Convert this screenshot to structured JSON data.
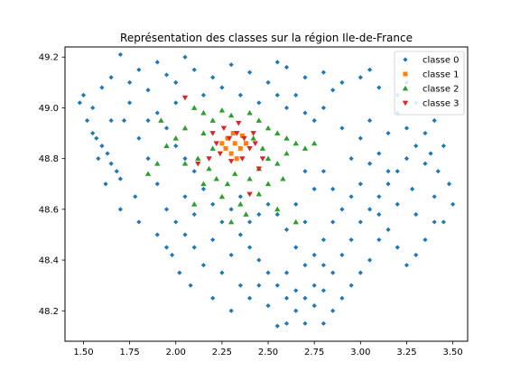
{
  "chart_data": {
    "type": "scatter",
    "title": "Représentation des classes sur la région Ile-de-France",
    "xlabel": "",
    "ylabel": "",
    "xlim": [
      1.4,
      3.58
    ],
    "ylim": [
      48.08,
      49.24
    ],
    "x_ticks": [
      1.5,
      1.75,
      2.0,
      2.25,
      2.5,
      2.75,
      3.0,
      3.25,
      3.5
    ],
    "x_tick_labels": [
      "1.50",
      "1.75",
      "2.00",
      "2.25",
      "2.50",
      "2.75",
      "3.00",
      "3.25",
      "3.50"
    ],
    "y_ticks": [
      48.2,
      48.4,
      48.6,
      48.8,
      49.0,
      49.2
    ],
    "y_tick_labels": [
      "48.2",
      "48.4",
      "48.6",
      "48.8",
      "49.0",
      "49.2"
    ],
    "grid": false,
    "legend_position": "top-right",
    "series": [
      {
        "name": "classe 0",
        "marker": "diamond",
        "color": "#1f77b4",
        "points": [
          [
            1.7,
            49.21
          ],
          [
            1.9,
            49.18
          ],
          [
            2.05,
            49.2
          ],
          [
            2.3,
            49.17
          ],
          [
            2.55,
            49.18
          ],
          [
            1.5,
            49.05
          ],
          [
            1.55,
            49.0
          ],
          [
            1.6,
            49.08
          ],
          [
            1.65,
            49.12
          ],
          [
            1.75,
            49.1
          ],
          [
            1.8,
            49.15
          ],
          [
            1.85,
            49.07
          ],
          [
            1.95,
            49.13
          ],
          [
            2.0,
            49.1
          ],
          [
            2.1,
            49.15
          ],
          [
            2.2,
            49.12
          ],
          [
            2.4,
            49.14
          ],
          [
            2.5,
            49.1
          ],
          [
            2.6,
            49.16
          ],
          [
            2.7,
            49.12
          ],
          [
            2.8,
            49.14
          ],
          [
            2.9,
            49.1
          ],
          [
            3.0,
            49.12
          ],
          [
            3.1,
            49.08
          ],
          [
            3.2,
            49.05
          ],
          [
            3.3,
            49.02
          ],
          [
            3.25,
            49.1
          ],
          [
            3.05,
            49.15
          ],
          [
            2.85,
            49.07
          ],
          [
            2.65,
            49.05
          ],
          [
            1.55,
            48.9
          ],
          [
            1.6,
            48.85
          ],
          [
            1.65,
            48.78
          ],
          [
            1.7,
            48.72
          ],
          [
            1.62,
            48.7
          ],
          [
            1.58,
            48.8
          ],
          [
            1.72,
            48.95
          ],
          [
            1.8,
            48.88
          ],
          [
            1.85,
            48.8
          ],
          [
            1.78,
            48.65
          ],
          [
            1.9,
            48.7
          ],
          [
            1.95,
            48.6
          ],
          [
            2.0,
            48.55
          ],
          [
            2.05,
            48.5
          ],
          [
            2.1,
            48.45
          ],
          [
            1.98,
            48.42
          ],
          [
            2.02,
            48.35
          ],
          [
            2.08,
            48.3
          ],
          [
            2.15,
            48.38
          ],
          [
            2.2,
            48.48
          ],
          [
            2.25,
            48.55
          ],
          [
            2.35,
            48.5
          ],
          [
            2.4,
            48.45
          ],
          [
            2.45,
            48.4
          ],
          [
            2.5,
            48.35
          ],
          [
            2.55,
            48.3
          ],
          [
            2.6,
            48.25
          ],
          [
            2.65,
            48.2
          ],
          [
            2.7,
            48.15
          ],
          [
            2.55,
            48.14
          ],
          [
            2.75,
            48.22
          ],
          [
            2.8,
            48.28
          ],
          [
            2.85,
            48.35
          ],
          [
            2.9,
            48.42
          ],
          [
            2.95,
            48.48
          ],
          [
            3.0,
            48.55
          ],
          [
            3.05,
            48.6
          ],
          [
            3.1,
            48.65
          ],
          [
            3.15,
            48.7
          ],
          [
            3.2,
            48.75
          ],
          [
            3.25,
            48.8
          ],
          [
            3.3,
            48.85
          ],
          [
            3.35,
            48.9
          ],
          [
            3.4,
            48.95
          ],
          [
            3.45,
            48.85
          ],
          [
            3.42,
            48.75
          ],
          [
            3.48,
            48.7
          ],
          [
            3.5,
            48.62
          ],
          [
            3.4,
            48.55
          ],
          [
            3.35,
            48.48
          ],
          [
            3.3,
            48.42
          ],
          [
            3.25,
            48.38
          ],
          [
            3.2,
            48.45
          ],
          [
            3.15,
            48.52
          ],
          [
            3.1,
            48.48
          ],
          [
            3.05,
            48.4
          ],
          [
            3.0,
            48.35
          ],
          [
            2.95,
            48.3
          ],
          [
            2.9,
            48.25
          ],
          [
            2.85,
            48.2
          ],
          [
            2.8,
            48.15
          ],
          [
            2.75,
            48.3
          ],
          [
            2.7,
            48.38
          ],
          [
            2.65,
            48.45
          ],
          [
            2.6,
            48.52
          ],
          [
            2.9,
            48.6
          ],
          [
            2.85,
            48.68
          ],
          [
            2.8,
            48.75
          ],
          [
            2.95,
            48.8
          ],
          [
            3.0,
            48.88
          ],
          [
            3.05,
            48.95
          ],
          [
            2.9,
            48.92
          ],
          [
            2.75,
            48.95
          ],
          [
            2.8,
            49.0
          ],
          [
            2.7,
            48.98
          ],
          [
            3.1,
            48.82
          ],
          [
            3.15,
            48.9
          ],
          [
            3.2,
            48.98
          ],
          [
            3.25,
            48.92
          ],
          [
            3.35,
            48.78
          ],
          [
            2.3,
            48.6
          ],
          [
            2.35,
            48.65
          ],
          [
            2.2,
            48.62
          ],
          [
            2.15,
            48.68
          ],
          [
            2.1,
            48.75
          ],
          [
            2.05,
            48.8
          ],
          [
            2.0,
            48.85
          ],
          [
            1.95,
            48.92
          ],
          [
            1.9,
            48.98
          ],
          [
            2.05,
            48.65
          ],
          [
            2.45,
            48.58
          ],
          [
            2.5,
            48.62
          ],
          [
            2.55,
            48.58
          ],
          [
            2.4,
            48.55
          ],
          [
            2.3,
            48.42
          ],
          [
            2.25,
            48.35
          ],
          [
            2.35,
            48.3
          ],
          [
            2.4,
            48.25
          ],
          [
            2.45,
            48.3
          ],
          [
            2.5,
            48.22
          ],
          [
            2.6,
            48.35
          ],
          [
            2.65,
            48.28
          ],
          [
            2.75,
            48.42
          ],
          [
            2.8,
            48.48
          ],
          [
            2.7,
            48.55
          ],
          [
            2.65,
            48.62
          ],
          [
            2.75,
            48.68
          ],
          [
            2.7,
            48.75
          ],
          [
            2.85,
            48.55
          ],
          [
            2.95,
            48.65
          ],
          [
            3.1,
            48.58
          ],
          [
            3.2,
            48.62
          ],
          [
            3.3,
            48.58
          ],
          [
            3.4,
            48.65
          ],
          [
            3.45,
            48.55
          ],
          [
            1.65,
            48.95
          ],
          [
            1.75,
            49.02
          ],
          [
            1.85,
            48.95
          ],
          [
            2.0,
            49.02
          ],
          [
            2.15,
            49.05
          ],
          [
            2.25,
            49.08
          ],
          [
            2.35,
            49.05
          ],
          [
            2.45,
            49.02
          ],
          [
            2.55,
            49.05
          ],
          [
            2.6,
            49.0
          ],
          [
            1.7,
            48.6
          ],
          [
            1.8,
            48.55
          ],
          [
            1.9,
            48.5
          ],
          [
            1.95,
            48.45
          ],
          [
            2.1,
            48.58
          ],
          [
            2.2,
            48.25
          ],
          [
            2.3,
            48.2
          ],
          [
            2.6,
            48.15
          ],
          [
            2.7,
            48.25
          ],
          [
            2.8,
            48.38
          ],
          [
            3.0,
            48.7
          ],
          [
            3.05,
            48.78
          ],
          [
            3.15,
            48.75
          ],
          [
            3.28,
            48.68
          ],
          [
            3.38,
            48.82
          ],
          [
            1.48,
            49.02
          ],
          [
            1.52,
            48.95
          ],
          [
            1.57,
            48.88
          ],
          [
            1.63,
            48.82
          ],
          [
            1.68,
            48.75
          ]
        ]
      },
      {
        "name": "classe 1",
        "marker": "square",
        "color": "#ff7f0e",
        "points": [
          [
            2.28,
            48.88
          ],
          [
            2.32,
            48.86
          ],
          [
            2.35,
            48.84
          ],
          [
            2.3,
            48.82
          ],
          [
            2.36,
            48.89
          ],
          [
            2.33,
            48.8
          ],
          [
            2.27,
            48.84
          ],
          [
            2.38,
            48.86
          ],
          [
            2.31,
            48.9
          ],
          [
            2.25,
            48.86
          ]
        ]
      },
      {
        "name": "classe 2",
        "marker": "triangle-up",
        "color": "#2ca02c",
        "points": [
          [
            2.1,
            49.0
          ],
          [
            2.15,
            48.98
          ],
          [
            2.2,
            48.95
          ],
          [
            2.25,
            48.99
          ],
          [
            2.3,
            48.97
          ],
          [
            2.4,
            48.98
          ],
          [
            2.45,
            48.95
          ],
          [
            2.5,
            48.92
          ],
          [
            2.55,
            48.9
          ],
          [
            2.6,
            48.88
          ],
          [
            2.05,
            48.92
          ],
          [
            2.0,
            48.88
          ],
          [
            1.95,
            48.85
          ],
          [
            2.05,
            48.78
          ],
          [
            2.12,
            48.8
          ],
          [
            2.18,
            48.76
          ],
          [
            2.22,
            48.72
          ],
          [
            2.28,
            48.7
          ],
          [
            2.32,
            48.74
          ],
          [
            2.4,
            48.72
          ],
          [
            2.45,
            48.76
          ],
          [
            2.5,
            48.8
          ],
          [
            2.55,
            48.78
          ],
          [
            2.6,
            48.82
          ],
          [
            2.65,
            48.86
          ],
          [
            2.7,
            48.84
          ],
          [
            2.75,
            48.86
          ],
          [
            2.25,
            48.65
          ],
          [
            2.35,
            48.62
          ],
          [
            2.45,
            48.66
          ],
          [
            2.55,
            48.6
          ],
          [
            2.65,
            48.55
          ],
          [
            1.9,
            48.78
          ],
          [
            1.85,
            48.74
          ],
          [
            2.15,
            48.7
          ],
          [
            2.42,
            48.88
          ],
          [
            2.47,
            48.84
          ],
          [
            2.2,
            48.84
          ],
          [
            2.15,
            48.9
          ],
          [
            2.5,
            48.7
          ],
          [
            2.58,
            48.72
          ],
          [
            1.92,
            48.95
          ],
          [
            2.1,
            48.62
          ],
          [
            2.3,
            48.55
          ],
          [
            2.38,
            48.58
          ]
        ]
      },
      {
        "name": "classe 3",
        "marker": "triangle-down",
        "color": "#d62728",
        "points": [
          [
            2.05,
            49.04
          ],
          [
            2.2,
            48.9
          ],
          [
            2.22,
            48.86
          ],
          [
            2.26,
            48.92
          ],
          [
            2.29,
            48.88
          ],
          [
            2.33,
            48.9
          ],
          [
            2.37,
            48.88
          ],
          [
            2.4,
            48.84
          ],
          [
            2.43,
            48.86
          ],
          [
            2.24,
            48.82
          ],
          [
            2.3,
            48.79
          ],
          [
            2.36,
            48.8
          ],
          [
            2.47,
            48.8
          ],
          [
            2.18,
            48.8
          ],
          [
            2.42,
            48.9
          ],
          [
            2.12,
            48.78
          ],
          [
            2.34,
            48.94
          ],
          [
            2.45,
            48.76
          ],
          [
            2.4,
            48.66
          ]
        ]
      }
    ]
  }
}
